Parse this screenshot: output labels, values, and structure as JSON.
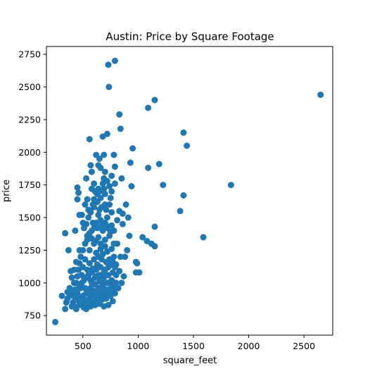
{
  "chart_data": {
    "type": "scatter",
    "title": "Austin: Price by Square Footage",
    "xlabel": "square_feet",
    "ylabel": "price",
    "xlim": [
      170,
      2760
    ],
    "ylim": [
      600,
      2810
    ],
    "xticks": [
      500,
      1000,
      1500,
      2000,
      2500
    ],
    "yticks": [
      750,
      1000,
      1250,
      1500,
      1750,
      2000,
      2250,
      2500,
      2750
    ],
    "grid": false,
    "legend": "none",
    "marker_color": "#1f77b4",
    "points": [
      [
        2650,
        2440
      ],
      [
        1840,
        1750
      ],
      [
        1590,
        1350
      ],
      [
        1440,
        2050
      ],
      [
        1410,
        2150
      ],
      [
        1410,
        1670
      ],
      [
        1380,
        1550
      ],
      [
        1225,
        1750
      ],
      [
        1190,
        1910
      ],
      [
        1150,
        2400
      ],
      [
        1150,
        1430
      ],
      [
        1150,
        1280
      ],
      [
        1120,
        1300
      ],
      [
        1090,
        2340
      ],
      [
        1090,
        1880
      ],
      [
        1080,
        1320
      ],
      [
        1040,
        1350
      ],
      [
        1010,
        1080
      ],
      [
        980,
        1080
      ],
      [
        980,
        1160
      ],
      [
        990,
        1150
      ],
      [
        950,
        2030
      ],
      [
        930,
        1920
      ],
      [
        940,
        1740
      ],
      [
        920,
        1360
      ],
      [
        910,
        1500
      ],
      [
        900,
        1250
      ],
      [
        890,
        1600
      ],
      [
        880,
        1200
      ],
      [
        860,
        1530
      ],
      [
        860,
        1450
      ],
      [
        870,
        1050
      ],
      [
        830,
        2290
      ],
      [
        840,
        2180
      ],
      [
        850,
        1800
      ],
      [
        830,
        1550
      ],
      [
        790,
        2700
      ],
      [
        730,
        2670
      ],
      [
        735,
        2500
      ],
      [
        720,
        2140
      ],
      [
        680,
        2120
      ],
      [
        690,
        1980
      ],
      [
        780,
        1980
      ],
      [
        790,
        1890
      ],
      [
        790,
        1760
      ],
      [
        760,
        1700
      ],
      [
        810,
        1480
      ],
      [
        780,
        1400
      ],
      [
        800,
        1140
      ],
      [
        820,
        960
      ],
      [
        830,
        1090
      ],
      [
        850,
        1000
      ],
      [
        840,
        1200
      ],
      [
        810,
        1300
      ],
      [
        560,
        2100
      ],
      [
        570,
        1900
      ],
      [
        580,
        1850
      ],
      [
        600,
        1760
      ],
      [
        530,
        1800
      ],
      [
        450,
        1730
      ],
      [
        450,
        1640
      ],
      [
        460,
        1690
      ],
      [
        540,
        1640
      ],
      [
        560,
        1550
      ],
      [
        520,
        1600
      ],
      [
        500,
        1460
      ],
      [
        490,
        1520
      ],
      [
        470,
        1520
      ],
      [
        430,
        1400
      ],
      [
        340,
        1380
      ],
      [
        370,
        1250
      ],
      [
        420,
        1100
      ],
      [
        420,
        1000
      ],
      [
        390,
        1090
      ],
      [
        380,
        960
      ],
      [
        360,
        880
      ],
      [
        350,
        850
      ],
      [
        340,
        800
      ],
      [
        310,
        900
      ],
      [
        250,
        700
      ],
      [
        640,
        1900
      ],
      [
        650,
        1950
      ],
      [
        620,
        1980
      ],
      [
        660,
        1880
      ],
      [
        700,
        1850
      ],
      [
        690,
        1800
      ],
      [
        640,
        1720
      ],
      [
        630,
        1680
      ],
      [
        660,
        1650
      ],
      [
        700,
        1600
      ],
      [
        650,
        1560
      ],
      [
        600,
        1580
      ],
      [
        640,
        1520
      ],
      [
        620,
        1460
      ],
      [
        600,
        1420
      ],
      [
        580,
        1400
      ],
      [
        560,
        1380
      ],
      [
        540,
        1330
      ],
      [
        520,
        1300
      ],
      [
        500,
        1250
      ],
      [
        480,
        1200
      ],
      [
        470,
        1150
      ],
      [
        460,
        1100
      ],
      [
        450,
        1050
      ],
      [
        440,
        1000
      ],
      [
        430,
        950
      ],
      [
        420,
        900
      ],
      [
        410,
        850
      ],
      [
        400,
        820
      ],
      [
        440,
        800
      ],
      [
        480,
        830
      ],
      [
        520,
        860
      ],
      [
        560,
        880
      ],
      [
        600,
        900
      ],
      [
        640,
        920
      ],
      [
        680,
        940
      ],
      [
        720,
        950
      ],
      [
        760,
        980
      ],
      [
        700,
        1000
      ],
      [
        660,
        1020
      ],
      [
        620,
        1050
      ],
      [
        580,
        1080
      ],
      [
        540,
        1100
      ],
      [
        500,
        1120
      ],
      [
        560,
        1150
      ],
      [
        600,
        1180
      ],
      [
        640,
        1200
      ],
      [
        680,
        1220
      ],
      [
        720,
        1240
      ],
      [
        760,
        1260
      ],
      [
        700,
        1280
      ],
      [
        660,
        1300
      ],
      [
        620,
        1320
      ],
      [
        580,
        1340
      ],
      [
        540,
        1360
      ],
      [
        600,
        1300
      ],
      [
        640,
        1350
      ],
      [
        680,
        1400
      ],
      [
        720,
        1420
      ],
      [
        760,
        1440
      ],
      [
        700,
        1460
      ],
      [
        660,
        1480
      ],
      [
        720,
        1500
      ],
      [
        760,
        1540
      ],
      [
        740,
        1600
      ],
      [
        700,
        1680
      ],
      [
        740,
        1740
      ],
      [
        720,
        1780
      ],
      [
        760,
        1820
      ],
      [
        680,
        1760
      ],
      [
        580,
        1720
      ],
      [
        600,
        1640
      ],
      [
        550,
        1500
      ],
      [
        530,
        1450
      ],
      [
        510,
        1420
      ],
      [
        560,
        1250
      ],
      [
        520,
        1180
      ],
      [
        490,
        1060
      ],
      [
        470,
        980
      ],
      [
        450,
        920
      ],
      [
        430,
        870
      ],
      [
        470,
        840
      ],
      [
        510,
        810
      ],
      [
        550,
        830
      ],
      [
        590,
        850
      ],
      [
        630,
        860
      ],
      [
        670,
        870
      ],
      [
        710,
        880
      ],
      [
        750,
        900
      ],
      [
        790,
        920
      ],
      [
        770,
        860
      ],
      [
        730,
        830
      ],
      [
        690,
        820
      ],
      [
        650,
        840
      ],
      [
        610,
        830
      ],
      [
        570,
        820
      ],
      [
        530,
        800
      ],
      [
        490,
        880
      ],
      [
        530,
        920
      ],
      [
        570,
        960
      ],
      [
        610,
        990
      ],
      [
        650,
        1010
      ],
      [
        690,
        1040
      ],
      [
        730,
        1060
      ],
      [
        770,
        1080
      ],
      [
        790,
        1120
      ],
      [
        750,
        1140
      ],
      [
        710,
        1160
      ],
      [
        670,
        1180
      ],
      [
        630,
        1140
      ],
      [
        590,
        1110
      ],
      [
        550,
        1060
      ],
      [
        510,
        1020
      ],
      [
        480,
        960
      ],
      [
        500,
        900
      ],
      [
        540,
        940
      ],
      [
        580,
        1000
      ],
      [
        620,
        1100
      ],
      [
        660,
        1120
      ],
      [
        700,
        1100
      ],
      [
        740,
        1180
      ],
      [
        780,
        1200
      ],
      [
        760,
        1020
      ],
      [
        720,
        1000
      ],
      [
        680,
        980
      ],
      [
        640,
        960
      ],
      [
        600,
        940
      ],
      [
        560,
        920
      ],
      [
        520,
        960
      ],
      [
        490,
        1000
      ],
      [
        530,
        1040
      ],
      [
        570,
        1020
      ],
      [
        610,
        1040
      ],
      [
        650,
        1060
      ],
      [
        690,
        1080
      ],
      [
        730,
        1120
      ],
      [
        770,
        1160
      ],
      [
        620,
        1230
      ],
      [
        660,
        1260
      ],
      [
        700,
        1330
      ],
      [
        740,
        1360
      ],
      [
        780,
        1300
      ],
      [
        750,
        1390
      ],
      [
        710,
        1440
      ],
      [
        670,
        1440
      ],
      [
        630,
        1420
      ],
      [
        590,
        1460
      ],
      [
        550,
        1560
      ],
      [
        590,
        1600
      ],
      [
        630,
        1620
      ],
      [
        670,
        1580
      ],
      [
        710,
        1560
      ],
      [
        750,
        1650
      ],
      [
        690,
        1720
      ],
      [
        650,
        1700
      ],
      [
        610,
        1700
      ],
      [
        570,
        1540
      ],
      [
        470,
        1250
      ],
      [
        440,
        1160
      ],
      [
        400,
        1040
      ],
      [
        380,
        900
      ],
      [
        400,
        940
      ],
      [
        360,
        930
      ],
      [
        420,
        820
      ],
      [
        460,
        880
      ],
      [
        500,
        840
      ],
      [
        540,
        870
      ],
      [
        580,
        900
      ],
      [
        620,
        880
      ],
      [
        660,
        900
      ],
      [
        700,
        920
      ],
      [
        740,
        940
      ],
      [
        780,
        960
      ],
      [
        800,
        1000
      ],
      [
        800,
        1060
      ]
    ]
  }
}
